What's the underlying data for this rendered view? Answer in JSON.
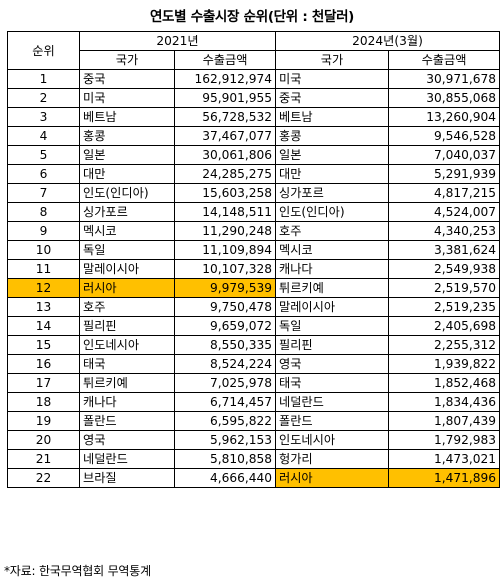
{
  "title": "연도별 수출시장 순위(단위 : 천달러)",
  "header": {
    "rank": "순위",
    "year_2021": "2021년",
    "year_2024": "2024년(3월)",
    "country": "국가",
    "amount": "수출금액"
  },
  "highlight_color": "#ffc000",
  "rows": [
    {
      "rank": "1",
      "c2021": "중국",
      "a2021": "162,912,974",
      "c2024": "미국",
      "a2024": "30,971,678",
      "hl2021": false,
      "hl2024": false
    },
    {
      "rank": "2",
      "c2021": "미국",
      "a2021": "95,901,955",
      "c2024": "중국",
      "a2024": "30,855,068",
      "hl2021": false,
      "hl2024": false
    },
    {
      "rank": "3",
      "c2021": "베트남",
      "a2021": "56,728,532",
      "c2024": "베트남",
      "a2024": "13,260,904",
      "hl2021": false,
      "hl2024": false
    },
    {
      "rank": "4",
      "c2021": "홍콩",
      "a2021": "37,467,077",
      "c2024": "홍콩",
      "a2024": "9,546,528",
      "hl2021": false,
      "hl2024": false
    },
    {
      "rank": "5",
      "c2021": "일본",
      "a2021": "30,061,806",
      "c2024": "일본",
      "a2024": "7,040,037",
      "hl2021": false,
      "hl2024": false
    },
    {
      "rank": "6",
      "c2021": "대만",
      "a2021": "24,285,275",
      "c2024": "대만",
      "a2024": "5,291,939",
      "hl2021": false,
      "hl2024": false
    },
    {
      "rank": "7",
      "c2021": "인도(인디아)",
      "a2021": "15,603,258",
      "c2024": "싱가포르",
      "a2024": "4,817,215",
      "hl2021": false,
      "hl2024": false
    },
    {
      "rank": "8",
      "c2021": "싱가포르",
      "a2021": "14,148,511",
      "c2024": "인도(인디아)",
      "a2024": "4,524,007",
      "hl2021": false,
      "hl2024": false
    },
    {
      "rank": "9",
      "c2021": "멕시코",
      "a2021": "11,290,248",
      "c2024": "호주",
      "a2024": "4,340,253",
      "hl2021": false,
      "hl2024": false
    },
    {
      "rank": "10",
      "c2021": "독일",
      "a2021": "11,109,894",
      "c2024": "멕시코",
      "a2024": "3,381,624",
      "hl2021": false,
      "hl2024": false
    },
    {
      "rank": "11",
      "c2021": "말레이시아",
      "a2021": "10,107,328",
      "c2024": "캐나다",
      "a2024": "2,549,938",
      "hl2021": false,
      "hl2024": false
    },
    {
      "rank": "12",
      "c2021": "러시아",
      "a2021": "9,979,539",
      "c2024": "튀르키예",
      "a2024": "2,519,570",
      "hl2021": true,
      "hl2024": false
    },
    {
      "rank": "13",
      "c2021": "호주",
      "a2021": "9,750,478",
      "c2024": "말레이시아",
      "a2024": "2,519,235",
      "hl2021": false,
      "hl2024": false
    },
    {
      "rank": "14",
      "c2021": "필리핀",
      "a2021": "9,659,072",
      "c2024": "독일",
      "a2024": "2,405,698",
      "hl2021": false,
      "hl2024": false
    },
    {
      "rank": "15",
      "c2021": "인도네시아",
      "a2021": "8,550,335",
      "c2024": "필리핀",
      "a2024": "2,255,312",
      "hl2021": false,
      "hl2024": false
    },
    {
      "rank": "16",
      "c2021": "태국",
      "a2021": "8,524,224",
      "c2024": "영국",
      "a2024": "1,939,822",
      "hl2021": false,
      "hl2024": false
    },
    {
      "rank": "17",
      "c2021": "튀르키예",
      "a2021": "7,025,978",
      "c2024": "태국",
      "a2024": "1,852,468",
      "hl2021": false,
      "hl2024": false
    },
    {
      "rank": "18",
      "c2021": "캐나다",
      "a2021": "6,714,457",
      "c2024": "네덜란드",
      "a2024": "1,834,436",
      "hl2021": false,
      "hl2024": false
    },
    {
      "rank": "19",
      "c2021": "폴란드",
      "a2021": "6,595,822",
      "c2024": "폴란드",
      "a2024": "1,807,439",
      "hl2021": false,
      "hl2024": false
    },
    {
      "rank": "20",
      "c2021": "영국",
      "a2021": "5,962,153",
      "c2024": "인도네시아",
      "a2024": "1,792,983",
      "hl2021": false,
      "hl2024": false
    },
    {
      "rank": "21",
      "c2021": "네덜란드",
      "a2021": "5,810,858",
      "c2024": "헝가리",
      "a2024": "1,473,021",
      "hl2021": false,
      "hl2024": false
    },
    {
      "rank": "22",
      "c2021": "브라질",
      "a2021": "4,666,440",
      "c2024": "러시아",
      "a2024": "1,471,896",
      "hl2021": false,
      "hl2024": true
    }
  ],
  "source_note": "*자료: 한국무역협회 무역통계"
}
